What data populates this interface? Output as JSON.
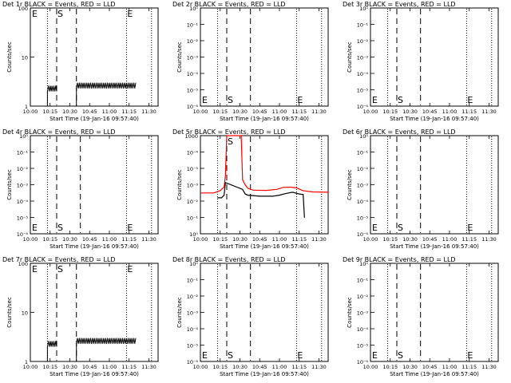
{
  "figure": {
    "xlabel": "Start Time (19-Jan-16 09:57:40)",
    "ylabel": "Counts/sec",
    "xticks": [
      "10:00",
      "10:15",
      "10:30",
      "10:45",
      "11:00",
      "11:15",
      "11:30"
    ],
    "colors": {
      "events": "#000000",
      "lld": "#ff0000",
      "axes": "#000000"
    },
    "markers": {
      "E": "E",
      "S": "S"
    }
  },
  "chart_data": [
    {
      "type": "line",
      "title": "Det 1r BLACK = Events, RED = LLD",
      "xlabel": "Start Time (19-Jan-16 09:57:40)",
      "ylabel": "Counts/sec",
      "xlim": [
        "10:00",
        "11:37"
      ],
      "yscale": "log",
      "ylim": [
        1,
        100
      ],
      "yticks": [
        "1",
        "10",
        "100"
      ],
      "vlines": [
        {
          "x": "10:13",
          "style": "dotted"
        },
        {
          "x": "10:20",
          "style": "dashed"
        },
        {
          "x": "10:35",
          "style": "dashed"
        },
        {
          "x": "11:13",
          "style": "dotted"
        },
        {
          "x": "11:32",
          "style": "dotted"
        }
      ],
      "markers": [
        {
          "label": "E",
          "x": "10:00",
          "pos": "top"
        },
        {
          "label": "S",
          "x": "10:20",
          "pos": "top"
        },
        {
          "label": "E",
          "x": "11:13",
          "pos": "top"
        }
      ],
      "series": [
        {
          "role": "events",
          "color": "#000000",
          "segments": [
            {
              "x0": "10:13",
              "x1": "10:20",
              "low": 2.0,
              "high": 2.6
            },
            {
              "x0": "10:35",
              "x1": "11:20",
              "low": 2.3,
              "high": 3.0
            }
          ]
        }
      ]
    },
    {
      "type": "line",
      "title": "Det 2r BLACK = Events, RED = LLD",
      "xlabel": "Start Time (19-Jan-16 09:57:40)",
      "ylabel": "Counts/sec",
      "xlim": [
        "10:00",
        "11:37"
      ],
      "yscale": "log",
      "ylim": [
        1e-06,
        0.0001
      ],
      "yticks": [
        "10⁰",
        "10⁻¹",
        "10⁻²",
        "10⁻³",
        "10⁻⁴",
        "10⁻⁵",
        "10⁻⁶"
      ],
      "vlines": [
        {
          "x": "10:13",
          "style": "dotted"
        },
        {
          "x": "10:20",
          "style": "dashed"
        },
        {
          "x": "10:38",
          "style": "dashed"
        },
        {
          "x": "11:13",
          "style": "dotted"
        },
        {
          "x": "11:32",
          "style": "dotted"
        }
      ],
      "markers": [
        {
          "label": "E",
          "x": "10:00",
          "pos": "bottom"
        },
        {
          "label": "S",
          "x": "10:20",
          "pos": "bottom"
        },
        {
          "label": "E",
          "x": "11:13",
          "pos": "bottom"
        }
      ],
      "series": []
    },
    {
      "type": "line",
      "title": "Det 3r BLACK = Events, RED = LLD",
      "xlabel": "Start Time (19-Jan-16 09:57:40)",
      "ylabel": "Counts/sec",
      "xlim": [
        "10:00",
        "11:37"
      ],
      "yscale": "log",
      "ylim": [
        1e-06,
        0.0001
      ],
      "yticks": [
        "10⁰",
        "10⁻¹",
        "10⁻²",
        "10⁻³",
        "10⁻⁴",
        "10⁻⁵",
        "10⁻⁶"
      ],
      "vlines": [
        {
          "x": "10:13",
          "style": "dotted"
        },
        {
          "x": "10:20",
          "style": "dashed"
        },
        {
          "x": "10:38",
          "style": "dashed"
        },
        {
          "x": "11:13",
          "style": "dotted"
        },
        {
          "x": "11:32",
          "style": "dotted"
        }
      ],
      "markers": [
        {
          "label": "E",
          "x": "10:00",
          "pos": "bottom"
        },
        {
          "label": "S",
          "x": "10:20",
          "pos": "bottom"
        },
        {
          "label": "E",
          "x": "11:13",
          "pos": "bottom"
        }
      ],
      "series": []
    },
    {
      "type": "line",
      "title": "Det 4r BLACK = Events, RED = LLD",
      "xlabel": "Start Time (19-Jan-16 09:57:40)",
      "ylabel": "Counts/sec",
      "xlim": [
        "10:00",
        "11:37"
      ],
      "yscale": "log",
      "ylim": [
        1e-06,
        0.0001
      ],
      "yticks": [
        "10⁰",
        "10⁻¹",
        "10⁻²",
        "10⁻³",
        "10⁻⁴",
        "10⁻⁵",
        "10⁻⁶"
      ],
      "vlines": [
        {
          "x": "10:13",
          "style": "dotted"
        },
        {
          "x": "10:20",
          "style": "dashed"
        },
        {
          "x": "10:38",
          "style": "dashed"
        },
        {
          "x": "11:13",
          "style": "dotted"
        },
        {
          "x": "11:32",
          "style": "dotted"
        }
      ],
      "markers": [
        {
          "label": "E",
          "x": "10:00",
          "pos": "bottom"
        },
        {
          "label": "S",
          "x": "10:20",
          "pos": "bottom"
        },
        {
          "label": "E",
          "x": "11:13",
          "pos": "bottom"
        }
      ],
      "series": []
    },
    {
      "type": "line",
      "title": "Det 5r BLACK = Events, RED = LLD",
      "xlabel": "Start Time (19-Jan-16 09:57:40)",
      "ylabel": "Counts/sec",
      "xlim": [
        "10:00",
        "11:37"
      ],
      "yscale": "log",
      "ylim": [
        1e-06,
        1000
      ],
      "yticks": [
        "1000",
        "10⁻⁴",
        "10⁻⁵",
        "10⁻³",
        "10⁻²",
        "10⁻¹",
        "10⁰"
      ],
      "vlines": [
        {
          "x": "10:13",
          "style": "dotted"
        },
        {
          "x": "10:20",
          "style": "dashed"
        },
        {
          "x": "10:38",
          "style": "dashed"
        },
        {
          "x": "11:13",
          "style": "dotted"
        },
        {
          "x": "11:32",
          "style": "dotted"
        }
      ],
      "markers": [
        {
          "label": "S",
          "x": "10:20",
          "pos": "top"
        }
      ],
      "series": [
        {
          "role": "lld",
          "color": "#ff0000",
          "points": [
            [
              "10:00",
              0.0056
            ],
            [
              "10:10",
              0.0056
            ],
            [
              "10:15",
              0.009
            ],
            [
              "10:18",
              0.02
            ],
            [
              "10:19",
              0.2
            ],
            [
              "10:20",
              1000
            ],
            [
              "10:31",
              1000
            ],
            [
              "10:32",
              0.09
            ],
            [
              "10:34",
              0.03
            ],
            [
              "10:36",
              0.015
            ],
            [
              "10:40",
              0.01
            ],
            [
              "10:50",
              0.0095
            ],
            [
              "10:58",
              0.012
            ],
            [
              "11:03",
              0.018
            ],
            [
              "11:08",
              0.019
            ],
            [
              "11:13",
              0.016
            ],
            [
              "11:18",
              0.009
            ],
            [
              "11:25",
              0.007
            ],
            [
              "11:37",
              0.0065
            ]
          ]
        },
        {
          "role": "events",
          "color": "#000000",
          "points": [
            [
              "10:13",
              0.002
            ],
            [
              "10:16",
              0.002
            ],
            [
              "10:18",
              0.0035
            ],
            [
              "10:19",
              0.05
            ],
            [
              "10:32",
              0.012
            ],
            [
              "10:34",
              0.0045
            ],
            [
              "10:36",
              0.0035
            ],
            [
              "10:45",
              0.0028
            ],
            [
              "10:55",
              0.0028
            ],
            [
              "11:00",
              0.0035
            ],
            [
              "11:05",
              0.005
            ],
            [
              "11:10",
              0.0065
            ],
            [
              "11:15",
              0.0045
            ],
            [
              "11:18",
              0.004
            ],
            [
              "11:19",
              3e-05
            ]
          ]
        }
      ]
    },
    {
      "type": "line",
      "title": "Det 6r BLACK = Events, RED = LLD",
      "xlabel": "Start Time (19-Jan-16 09:57:40)",
      "ylabel": "Counts/sec",
      "xlim": [
        "10:00",
        "11:37"
      ],
      "yscale": "log",
      "ylim": [
        1e-06,
        0.0001
      ],
      "yticks": [
        "10⁰",
        "10⁻¹",
        "10⁻²",
        "10⁻³",
        "10⁻⁴",
        "10⁻⁵",
        "10⁻⁶"
      ],
      "vlines": [
        {
          "x": "10:13",
          "style": "dotted"
        },
        {
          "x": "10:20",
          "style": "dashed"
        },
        {
          "x": "10:38",
          "style": "dashed"
        },
        {
          "x": "11:13",
          "style": "dotted"
        },
        {
          "x": "11:32",
          "style": "dotted"
        }
      ],
      "markers": [
        {
          "label": "E",
          "x": "10:00",
          "pos": "bottom"
        },
        {
          "label": "S",
          "x": "10:20",
          "pos": "bottom"
        },
        {
          "label": "E",
          "x": "11:13",
          "pos": "bottom"
        }
      ],
      "series": []
    },
    {
      "type": "line",
      "title": "Det 7r BLACK = Events, RED = LLD",
      "xlabel": "Start Time (19-Jan-16 09:57:40)",
      "ylabel": "Counts/sec",
      "xlim": [
        "10:00",
        "11:37"
      ],
      "yscale": "log",
      "ylim": [
        1,
        100
      ],
      "yticks": [
        "1",
        "10",
        "100"
      ],
      "vlines": [
        {
          "x": "10:13",
          "style": "dotted"
        },
        {
          "x": "10:20",
          "style": "dashed"
        },
        {
          "x": "10:35",
          "style": "dashed"
        },
        {
          "x": "11:13",
          "style": "dotted"
        },
        {
          "x": "11:32",
          "style": "dotted"
        }
      ],
      "markers": [
        {
          "label": "E",
          "x": "10:00",
          "pos": "top"
        },
        {
          "label": "S",
          "x": "10:20",
          "pos": "top"
        },
        {
          "label": "E",
          "x": "11:13",
          "pos": "top"
        }
      ],
      "series": [
        {
          "role": "events",
          "color": "#000000",
          "segments": [
            {
              "x0": "10:13",
              "x1": "10:20",
              "low": 2.0,
              "high": 2.6
            },
            {
              "x0": "10:35",
              "x1": "11:20",
              "low": 2.3,
              "high": 3.0
            }
          ]
        }
      ]
    },
    {
      "type": "line",
      "title": "Det 8r BLACK = Events, RED = LLD",
      "xlabel": "Start Time (19-Jan-16 09:57:40)",
      "ylabel": "Counts/sec",
      "xlim": [
        "10:00",
        "11:37"
      ],
      "yscale": "log",
      "ylim": [
        1e-06,
        0.0001
      ],
      "yticks": [
        "10⁰",
        "10⁻¹",
        "10⁻²",
        "10⁻³",
        "10⁻⁴",
        "10⁻⁵",
        "10⁻⁶"
      ],
      "vlines": [
        {
          "x": "10:13",
          "style": "dotted"
        },
        {
          "x": "10:20",
          "style": "dashed"
        },
        {
          "x": "10:38",
          "style": "dashed"
        },
        {
          "x": "11:13",
          "style": "dotted"
        },
        {
          "x": "11:32",
          "style": "dotted"
        }
      ],
      "markers": [
        {
          "label": "E",
          "x": "10:00",
          "pos": "bottom"
        },
        {
          "label": "S",
          "x": "10:20",
          "pos": "bottom"
        },
        {
          "label": "E",
          "x": "11:13",
          "pos": "bottom"
        }
      ],
      "series": []
    },
    {
      "type": "line",
      "title": "Det 9r BLACK = Events, RED = LLD",
      "xlabel": "Start Time (19-Jan-16 09:57:40)",
      "ylabel": "Counts/sec",
      "xlim": [
        "10:00",
        "11:37"
      ],
      "yscale": "log",
      "ylim": [
        1e-06,
        0.0001
      ],
      "yticks": [
        "10⁰",
        "10⁻¹",
        "10⁻²",
        "10⁻³",
        "10⁻⁴",
        "10⁻⁵",
        "10⁻⁶"
      ],
      "vlines": [
        {
          "x": "10:13",
          "style": "dotted"
        },
        {
          "x": "10:20",
          "style": "dashed"
        },
        {
          "x": "10:38",
          "style": "dashed"
        },
        {
          "x": "11:13",
          "style": "dotted"
        },
        {
          "x": "11:32",
          "style": "dotted"
        }
      ],
      "markers": [
        {
          "label": "E",
          "x": "10:00",
          "pos": "bottom"
        },
        {
          "label": "S",
          "x": "10:20",
          "pos": "bottom"
        },
        {
          "label": "E",
          "x": "11:13",
          "pos": "bottom"
        }
      ],
      "series": []
    }
  ]
}
